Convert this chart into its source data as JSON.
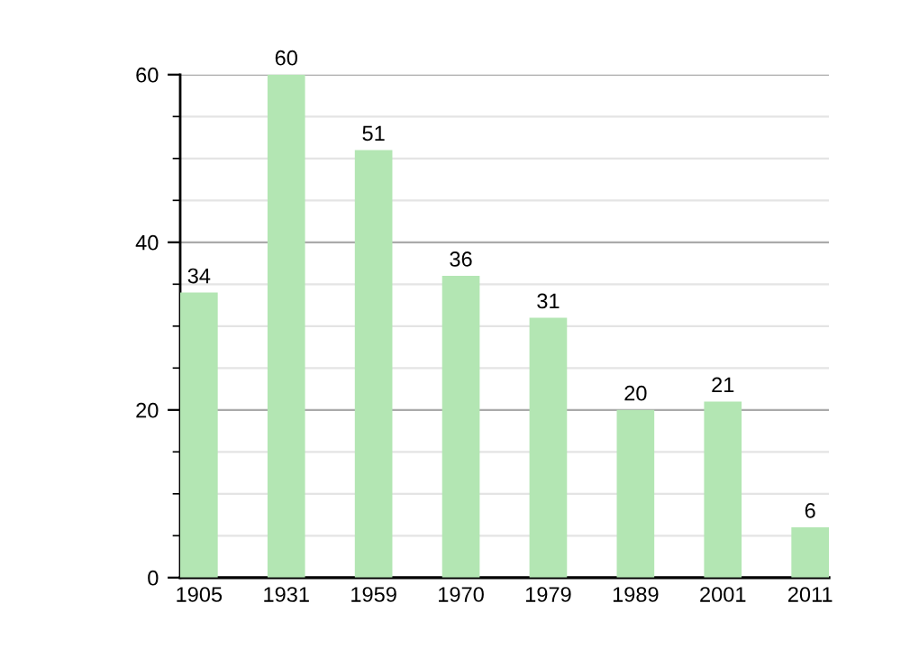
{
  "chart_data": {
    "type": "bar",
    "categories": [
      "1905",
      "1931",
      "1959",
      "1970",
      "1979",
      "1989",
      "2001",
      "2011"
    ],
    "values": [
      34,
      60,
      51,
      36,
      31,
      20,
      21,
      6
    ],
    "color": "#b3e6b3",
    "ylim": [
      0,
      60
    ],
    "yticks": [
      0,
      {
        "value": 5,
        "label": null
      },
      {
        "value": 10,
        "label": null
      },
      {
        "value": 15,
        "label": null
      },
      20,
      {
        "value": 25,
        "label": null
      },
      {
        "value": 30,
        "label": null
      },
      {
        "value": 35,
        "label": null
      },
      40,
      {
        "value": 45,
        "label": null
      },
      {
        "value": 50,
        "label": null
      },
      {
        "value": 55,
        "label": null
      },
      60
    ],
    "grid": "y",
    "data_labels": true
  }
}
